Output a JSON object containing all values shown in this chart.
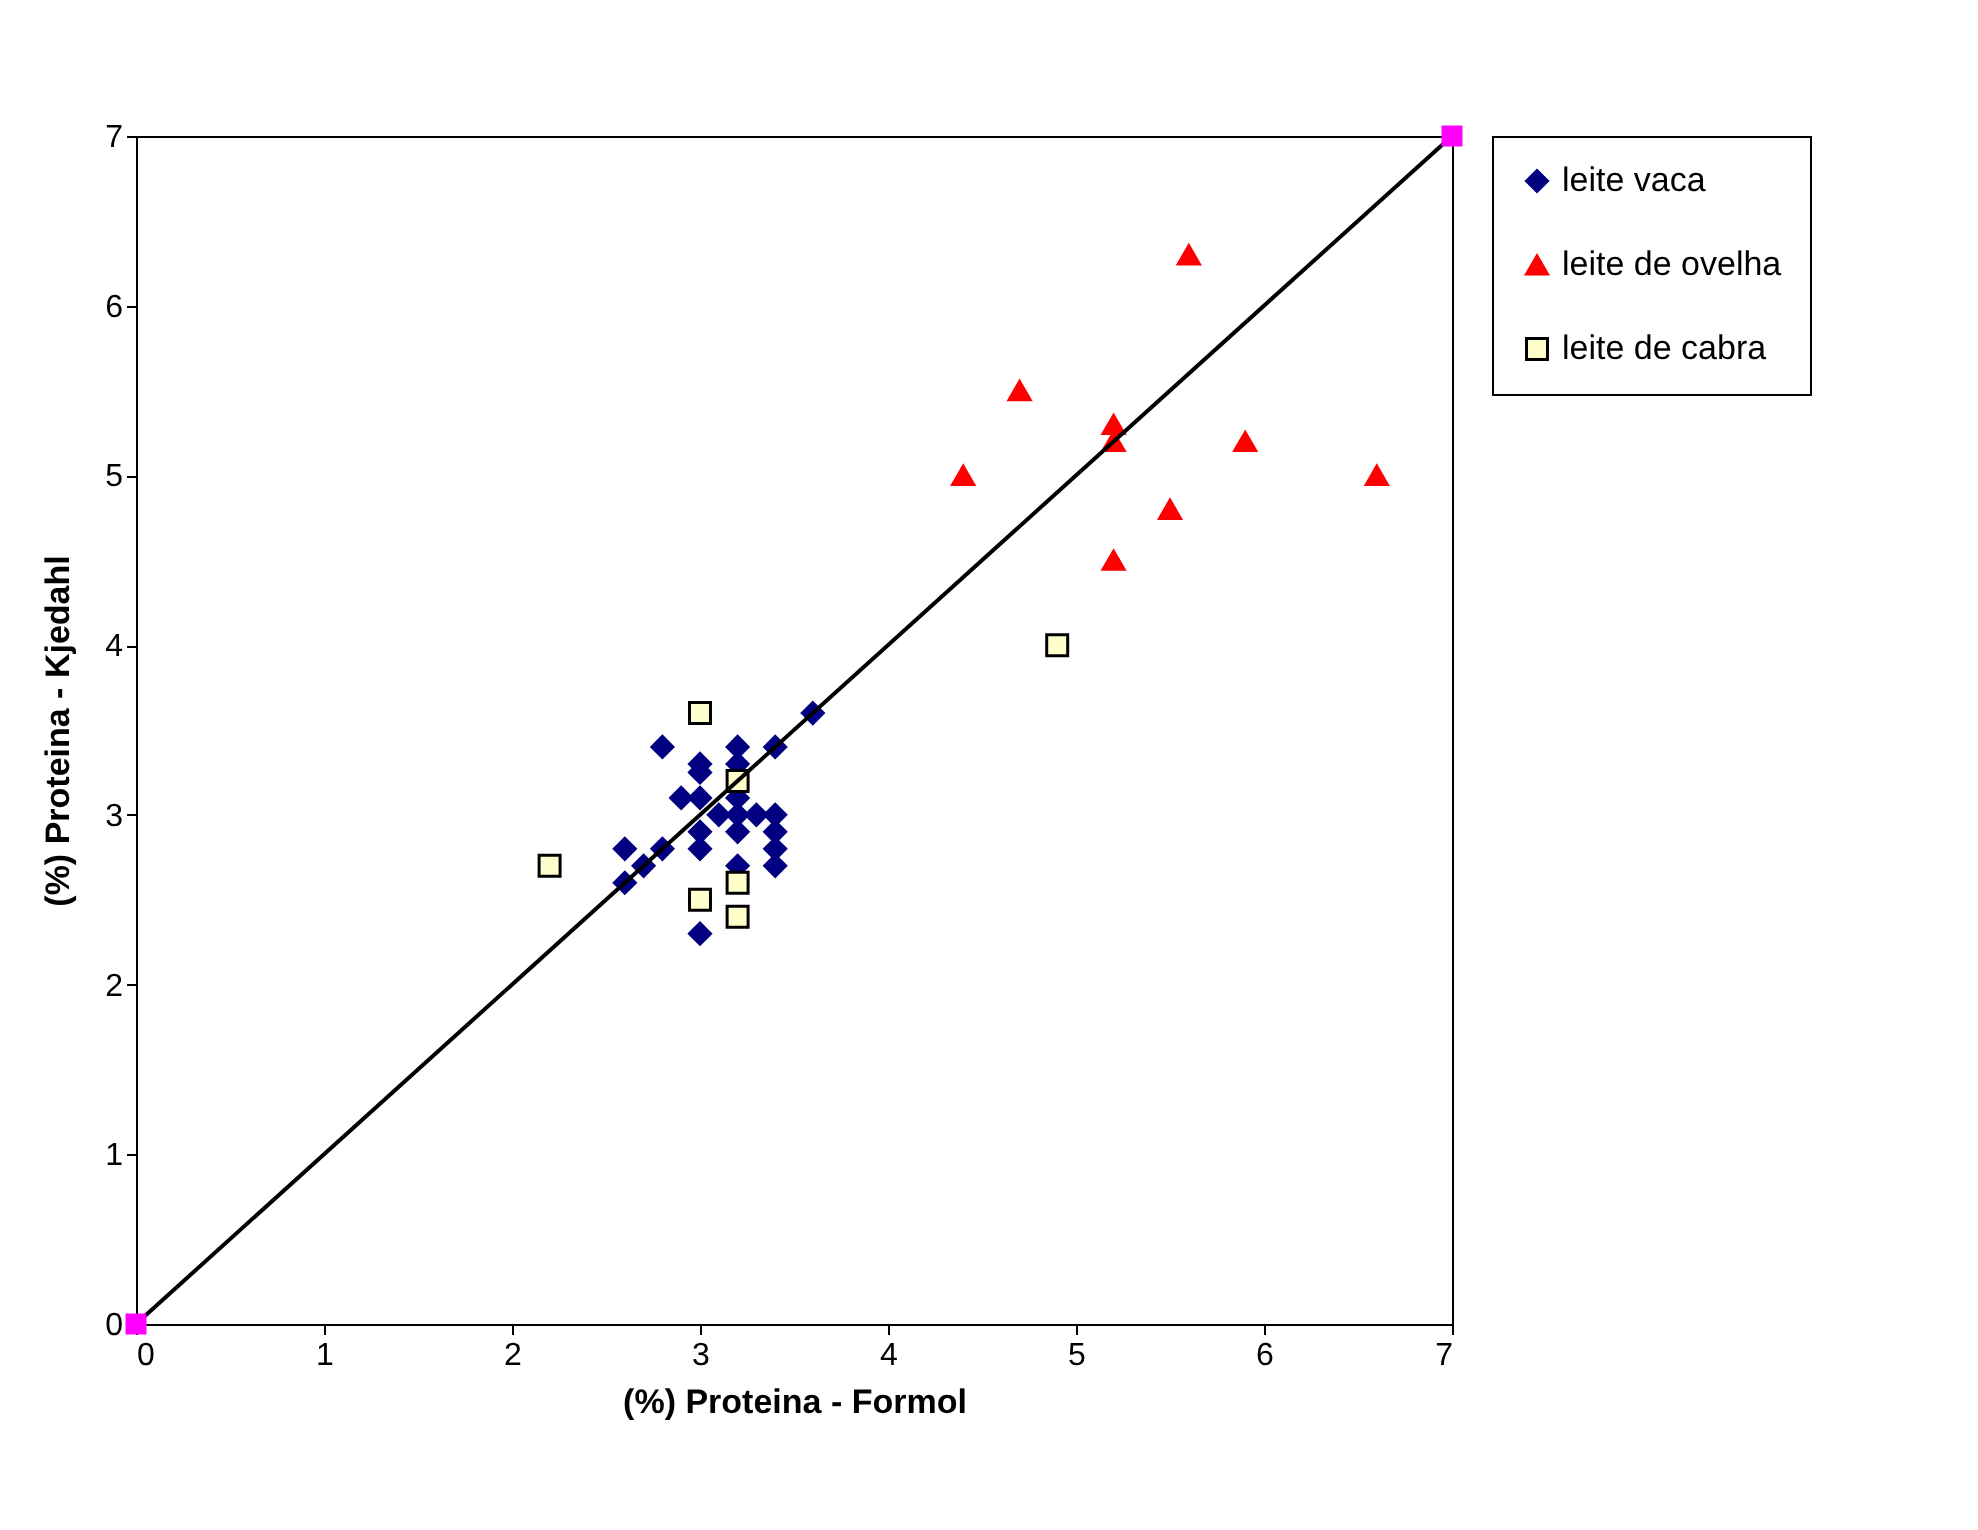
{
  "chart_data": {
    "type": "scatter",
    "xlabel": "(%) Proteina - Formol",
    "ylabel": "(%) Proteina - Kjedahl",
    "xlim": [
      0,
      7
    ],
    "ylim": [
      0,
      7
    ],
    "xticks": [
      0,
      1,
      2,
      3,
      4,
      5,
      6,
      7
    ],
    "yticks": [
      0,
      1,
      2,
      3,
      4,
      5,
      6,
      7
    ],
    "grid": false,
    "legend": "right",
    "series": [
      {
        "name": "leite vaca",
        "color": "#000080",
        "marker": "diamond",
        "x": [
          2.6,
          2.6,
          2.7,
          2.8,
          2.8,
          2.9,
          3.0,
          3.0,
          3.0,
          3.0,
          3.0,
          3.0,
          3.1,
          3.2,
          3.2,
          3.2,
          3.2,
          3.2,
          3.2,
          3.4,
          3.4,
          3.4,
          3.4,
          3.4,
          3.6,
          3.3
        ],
        "values": [
          2.8,
          2.6,
          2.7,
          2.8,
          3.4,
          3.1,
          3.3,
          3.25,
          3.1,
          2.9,
          2.8,
          2.3,
          3.0,
          3.4,
          3.3,
          3.1,
          3.0,
          2.9,
          2.7,
          3.4,
          3.0,
          2.9,
          2.8,
          2.7,
          3.6,
          3.0
        ]
      },
      {
        "name": "leite de ovelha",
        "color": "#ff0000",
        "marker": "triangle",
        "x": [
          4.4,
          4.7,
          5.2,
          5.2,
          5.6,
          5.9,
          6.6,
          5.5,
          5.2
        ],
        "values": [
          5.0,
          5.5,
          5.3,
          5.2,
          6.3,
          5.2,
          5.0,
          4.8,
          4.5
        ]
      },
      {
        "name": "leite de cabra",
        "color": "#ffffcc",
        "marker": "square",
        "x": [
          2.2,
          3.0,
          3.2,
          3.0,
          3.2,
          3.2,
          4.9
        ],
        "values": [
          2.7,
          3.6,
          3.2,
          2.5,
          2.6,
          2.4,
          4.0
        ]
      },
      {
        "type": "line",
        "color": "#000000",
        "marker": "none",
        "x": [
          0,
          7
        ],
        "values": [
          0,
          7
        ]
      },
      {
        "color": "#ff00ff",
        "marker": "square",
        "x": [
          0,
          7
        ],
        "values": [
          0,
          7
        ]
      }
    ]
  }
}
